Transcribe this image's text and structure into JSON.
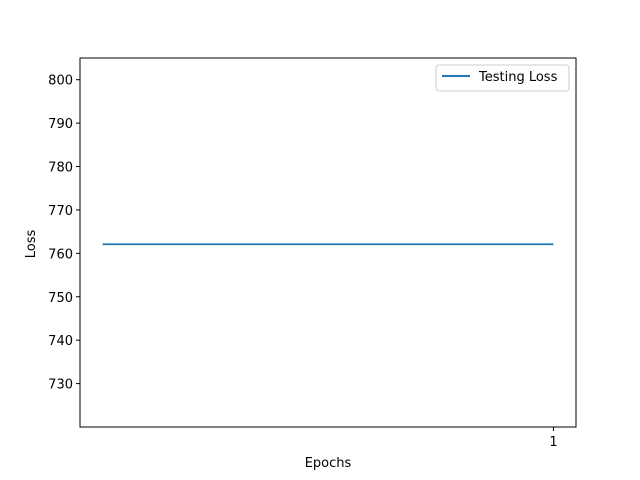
{
  "chart_data": {
    "type": "line",
    "title": "",
    "xlabel": "Epochs",
    "ylabel": "Loss",
    "x": [
      0,
      1
    ],
    "x_ticks": [
      {
        "value": 1,
        "label": "1"
      }
    ],
    "xlim": [
      -0.05,
      1.05
    ],
    "ylim": [
      720,
      805
    ],
    "y_ticks": [
      730,
      740,
      750,
      760,
      770,
      780,
      790,
      800
    ],
    "series": [
      {
        "name": "Testing Loss",
        "color": "#1f77b4",
        "values": [
          762.1,
          762.1
        ]
      }
    ],
    "legend_position": "top-right",
    "grid": false
  }
}
